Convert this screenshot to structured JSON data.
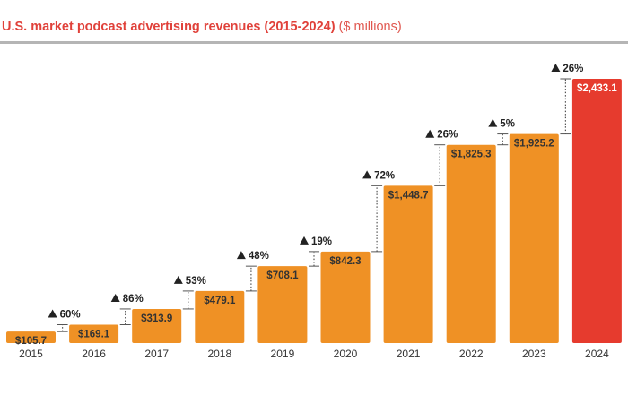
{
  "chart_data": {
    "type": "bar",
    "title": "U.S. market podcast advertising revenues (2015-2024)",
    "subtitle": "($ millions)",
    "categories": [
      "2015",
      "2016",
      "2017",
      "2018",
      "2019",
      "2020",
      "2021",
      "2022",
      "2023",
      "2024"
    ],
    "values": [
      105.7,
      169.1,
      313.9,
      479.1,
      708.1,
      842.3,
      1448.7,
      1825.3,
      1925.2,
      2433.1
    ],
    "value_labels": [
      "$105.7",
      "$169.1",
      "$313.9",
      "$479.1",
      "$708.1",
      "$842.3",
      "$1,448.7",
      "$1,825.3",
      "$1,925.2",
      "$2,433.1"
    ],
    "growth_labels": [
      "60%",
      "86%",
      "53%",
      "48%",
      "19%",
      "72%",
      "26%",
      "5%",
      "26%"
    ],
    "xlabel": "",
    "ylabel": "",
    "ylim": [
      0,
      2433.1
    ],
    "grid": false,
    "colors": {
      "bar": "#ef9125",
      "highlight": "#e63b2e",
      "title": "#e0413a"
    }
  }
}
